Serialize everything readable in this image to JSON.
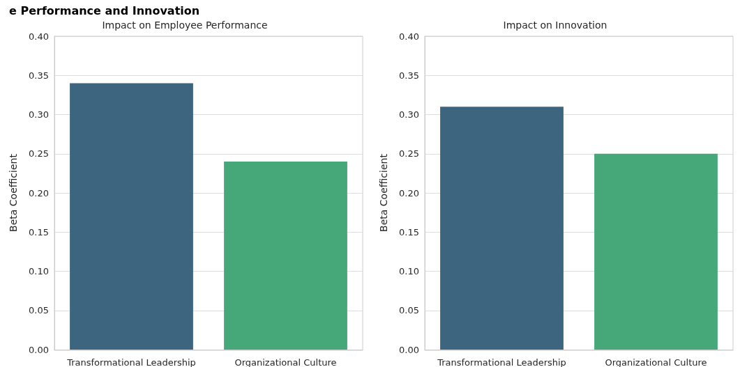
{
  "chart_data": [
    {
      "type": "bar",
      "title": "Impact on Employee Performance",
      "annotations": [
        "e Performance and Innovation"
      ],
      "ylabel": "Beta Coefficient",
      "categories": [
        "Transformational Leadership",
        "Organizational Culture"
      ],
      "values": [
        0.34,
        0.24
      ],
      "colors": [
        "#3e6580",
        "#46a878"
      ],
      "ylim": [
        0,
        0.4
      ],
      "yticks": [
        {
          "value": 0,
          "label": "0.00"
        },
        0.05,
        {
          "value": 0.1,
          "label": "0.10"
        },
        0.15,
        {
          "value": 0.2,
          "label": "0.20"
        },
        0.25,
        {
          "value": 0.3,
          "label": "0.30"
        },
        0.35,
        {
          "value": 0.4,
          "label": "0.40"
        }
      ],
      "grid": "y"
    },
    {
      "type": "bar",
      "title": "Impact on Innovation",
      "ylabel": "Beta Coefficient",
      "categories": [
        "Transformational Leadership",
        "Organizational Culture"
      ],
      "values": [
        0.31,
        0.25
      ],
      "colors": [
        "#3e6580",
        "#46a878"
      ],
      "ylim": [
        0,
        0.4
      ],
      "yticks": [
        {
          "value": 0,
          "label": "0.00"
        },
        0.05,
        {
          "value": 0.1,
          "label": "0.10"
        },
        0.15,
        {
          "value": 0.2,
          "label": "0.20"
        },
        0.25,
        {
          "value": 0.3,
          "label": "0.30"
        },
        0.35,
        {
          "value": 0.4,
          "label": "0.40"
        }
      ],
      "grid": "y"
    }
  ]
}
